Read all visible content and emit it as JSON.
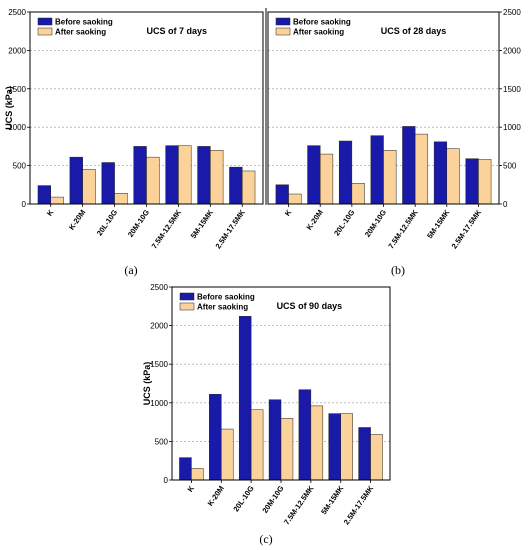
{
  "colors": {
    "before": "#1a1aa8",
    "after": "#fbd39a",
    "grid": "#999999"
  },
  "chart_data": [
    {
      "type": "bar",
      "panel_label": "(a)",
      "title": "UCS of 7 days",
      "ylabel": "UCS (kPa)",
      "ylim": [
        0,
        2500
      ],
      "yticks": [
        0,
        500,
        1000,
        1500,
        2000,
        2500
      ],
      "y_axis_side": "left",
      "grid": true,
      "legend_position": "top-left",
      "categories": [
        "K",
        "K-20M",
        "20L-10G",
        "20M-10G",
        "7.5M-12.5MK",
        "5M-15MK",
        "2.5M-17.5MK"
      ],
      "series": [
        {
          "name": "Before saoking",
          "values": [
            240,
            610,
            540,
            750,
            760,
            750,
            480
          ]
        },
        {
          "name": "After saoking",
          "values": [
            90,
            450,
            140,
            610,
            760,
            700,
            430
          ]
        }
      ]
    },
    {
      "type": "bar",
      "panel_label": "(b)",
      "title": "UCS of 28 days",
      "ylabel": "",
      "ylim": [
        0,
        2500
      ],
      "yticks": [
        0,
        500,
        1000,
        1500,
        2000,
        2500
      ],
      "y_axis_side": "right",
      "grid": true,
      "legend_position": "top-left",
      "categories": [
        "K",
        "K-20M",
        "20L-10G",
        "20M-10G",
        "7.5M-12.5MK",
        "5M-15MK",
        "2.5M-17.5MK"
      ],
      "series": [
        {
          "name": "Before saoking",
          "values": [
            250,
            760,
            820,
            890,
            1010,
            810,
            590
          ]
        },
        {
          "name": "After saoking",
          "values": [
            130,
            650,
            270,
            700,
            910,
            720,
            580
          ]
        }
      ]
    },
    {
      "type": "bar",
      "panel_label": "(c)",
      "title": "UCS of 90 days",
      "ylabel": "UCS (kPa)",
      "ylim": [
        0,
        2500
      ],
      "yticks": [
        0,
        500,
        1000,
        1500,
        2000,
        2500
      ],
      "y_axis_side": "left",
      "grid": true,
      "legend_position": "top-left",
      "categories": [
        "K",
        "K-20M",
        "20L-10G",
        "20M-10G",
        "7.5M-12.5MK",
        "5M-15MK",
        "2.5M-17.5MK"
      ],
      "series": [
        {
          "name": "Before saoking",
          "values": [
            290,
            1110,
            2120,
            1040,
            1170,
            860,
            680
          ]
        },
        {
          "name": "After saoking",
          "values": [
            150,
            660,
            910,
            800,
            960,
            860,
            590
          ]
        }
      ]
    }
  ]
}
